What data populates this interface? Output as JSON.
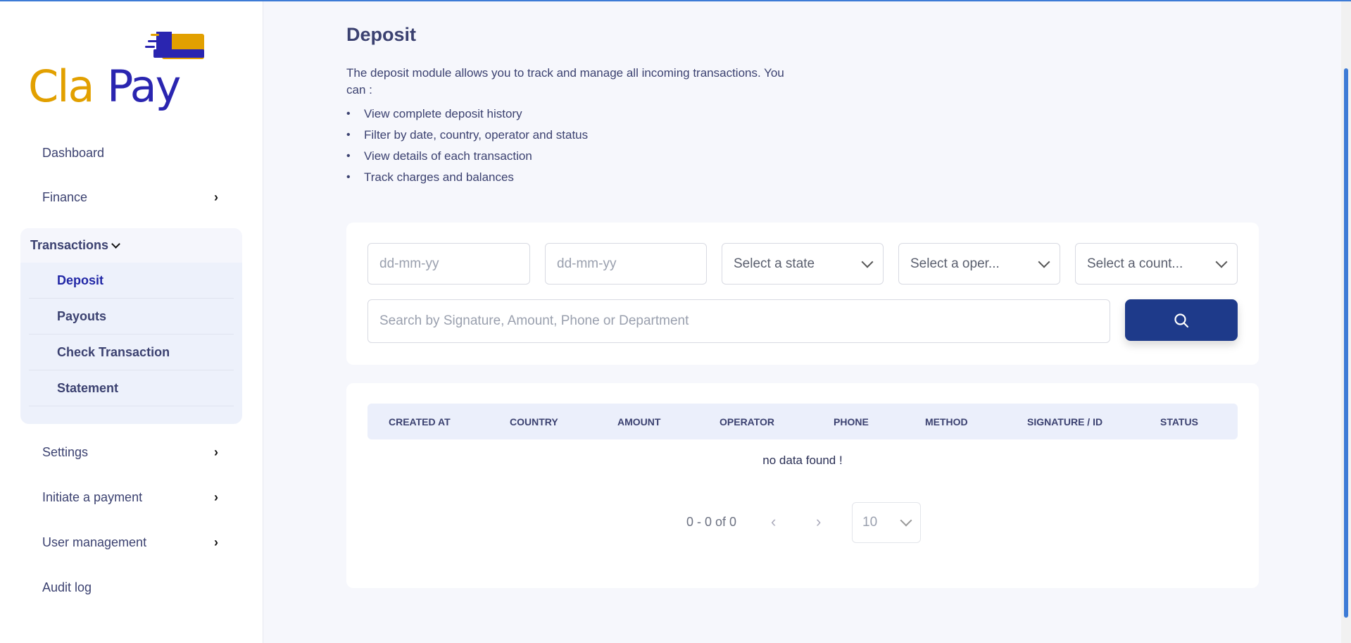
{
  "brand": {
    "name": "ClaPay",
    "part1": "Cla",
    "part2": "Pay",
    "colors": {
      "gold": "#e2a000",
      "blue": "#2a25b0"
    }
  },
  "sidebar": {
    "items": [
      {
        "label": "Dashboard",
        "has_chevron": false
      },
      {
        "label": "Finance",
        "has_chevron": true
      },
      {
        "label": "Transactions",
        "expanded": true,
        "children": [
          {
            "label": "Deposit",
            "active": true
          },
          {
            "label": "Payouts"
          },
          {
            "label": "Check Transaction"
          },
          {
            "label": "Statement"
          }
        ]
      },
      {
        "label": "Settings",
        "has_chevron": true
      },
      {
        "label": "Initiate a payment",
        "has_chevron": true
      },
      {
        "label": "User management",
        "has_chevron": true
      },
      {
        "label": "Audit log",
        "has_chevron": false
      }
    ]
  },
  "page": {
    "title": "Deposit",
    "description": "The deposit module allows you to track and manage all incoming transactions. You can :",
    "bullets": [
      "View complete deposit history",
      "Filter by date, country, operator and status",
      "View details of each transaction",
      "Track charges and balances"
    ]
  },
  "filters": {
    "date_from_placeholder": "dd-mm-yy",
    "date_to_placeholder": "dd-mm-yy",
    "state": "Select a state",
    "operator": "Select a oper...",
    "country": "Select a count...",
    "search_placeholder": "Search by Signature, Amount, Phone or Department",
    "search_icon": "search-icon"
  },
  "table": {
    "columns": [
      "CREATED AT",
      "COUNTRY",
      "AMOUNT",
      "OPERATOR",
      "PHONE",
      "METHOD",
      "SIGNATURE / ID",
      "STATUS"
    ],
    "empty": "no data found !"
  },
  "pagination": {
    "range": "0 - 0 of 0",
    "page_size": "10"
  },
  "colors": {
    "accent": "#1e3a8a",
    "sidebar_active": "#2127a6",
    "text": "#3b4170"
  }
}
